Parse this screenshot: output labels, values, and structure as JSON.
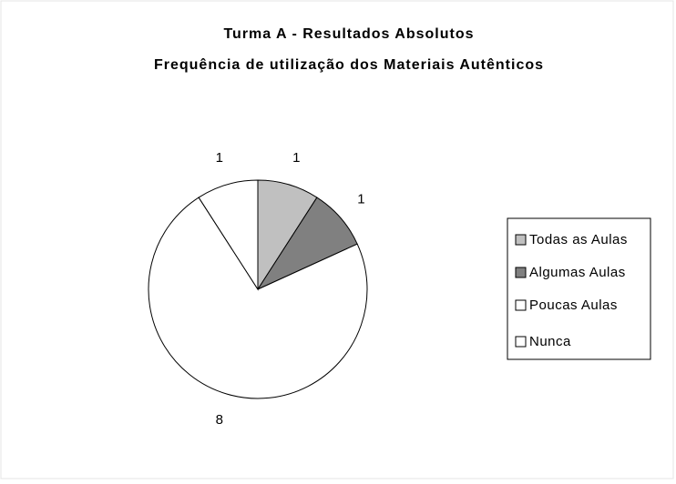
{
  "chart_data": {
    "type": "pie",
    "title": "Turma A - Resultados Absolutos",
    "subtitle": "Frequência de utilização dos Materiais Autênticos",
    "categories": [
      "Todas as Aulas",
      "Algumas Aulas",
      "Poucas Aulas",
      "Nunca"
    ],
    "values": [
      1,
      1,
      8,
      1
    ],
    "colors": [
      "#c0c0c0",
      "#808080",
      "#ffffff",
      "#ffffff"
    ],
    "legend": "right"
  }
}
